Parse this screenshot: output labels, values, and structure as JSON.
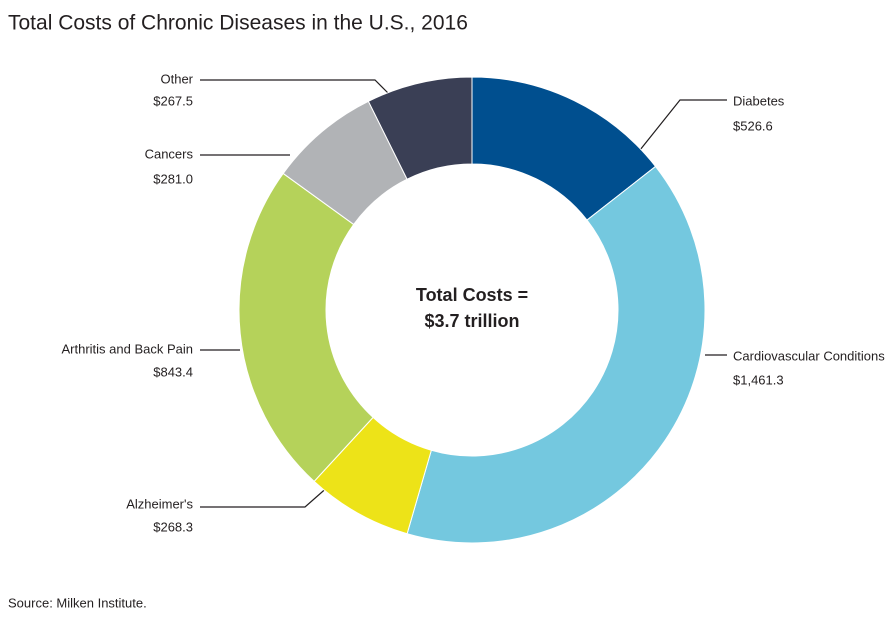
{
  "chart_data": {
    "type": "donut",
    "title": "Total Costs of Chronic Diseases in the U.S., 2016",
    "categories": [
      "Diabetes",
      "Cardiovascular Conditions",
      "Alzheimer's",
      "Arthritis and Back Pain",
      "Cancers",
      "Other"
    ],
    "values": [
      526.6,
      1461.3,
      268.3,
      843.4,
      281.0,
      267.5
    ],
    "value_labels": [
      "$526.6",
      "$1,461.3",
      "$268.3",
      "$843.4",
      "$281.0",
      "$267.5"
    ],
    "colors": [
      "#004f8f",
      "#74c8df",
      "#ede318",
      "#b5d25a",
      "#b1b3b6",
      "#3a3f55"
    ],
    "center_text": [
      "Total Costs =",
      "$3.7 trillion"
    ],
    "source": "Source: Milken Institute."
  }
}
